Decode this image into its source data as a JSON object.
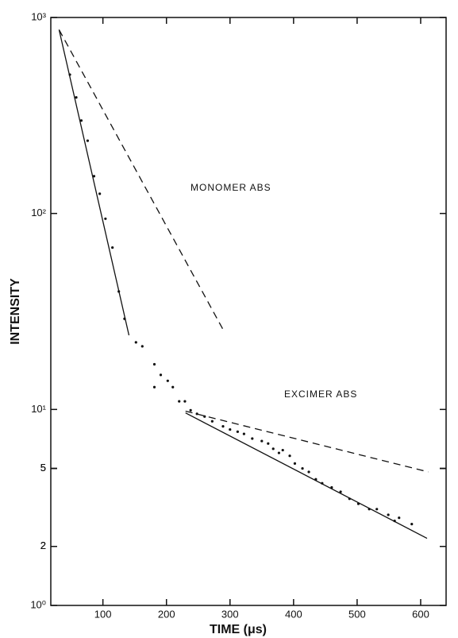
{
  "chart_data": {
    "type": "scatter",
    "x_label": "TIME (μs)",
    "y_label": "INTENSITY",
    "annotations": [
      "MONOMER ABS",
      "EXCIMER ABS"
    ],
    "log_y": true,
    "color": "#111111",
    "xlim": [
      18,
      640
    ],
    "xticks": [
      100,
      200,
      300,
      400,
      500,
      600
    ],
    "ylim": [
      1,
      1000
    ],
    "yticks": [
      {
        "value": 1,
        "label": "10⁰"
      },
      2,
      5,
      {
        "value": 10,
        "label": "10¹"
      },
      2,
      5,
      {
        "value": 100,
        "label": "10²"
      },
      2,
      5,
      {
        "value": 1000,
        "label": "10³"
      }
    ],
    "series": [
      {
        "mode": "markers",
        "x": [
          48,
          58,
          66,
          76,
          86,
          95,
          104,
          115,
          125,
          134,
          152,
          162,
          181,
          191,
          181,
          202,
          210,
          220,
          229,
          238,
          248,
          260,
          272,
          289,
          300,
          312,
          322,
          335,
          350,
          360,
          368,
          377,
          383,
          394,
          402,
          414,
          424,
          435,
          445,
          460,
          474,
          488,
          502,
          519,
          531,
          549,
          559,
          566,
          586
        ],
        "values": [
          511,
          391,
          298,
          235,
          155,
          126,
          94,
          67,
          40,
          29,
          22,
          21,
          17,
          15,
          13,
          14,
          13,
          11,
          11,
          9.9,
          9.5,
          9.2,
          8.7,
          8.2,
          7.9,
          7.7,
          7.5,
          7.1,
          6.9,
          6.7,
          6.3,
          6.0,
          6.2,
          5.8,
          5.3,
          5.0,
          4.8,
          4.4,
          4.2,
          4.0,
          3.8,
          3.5,
          3.3,
          3.1,
          3.1,
          2.9,
          2.7,
          2.8,
          2.6
        ]
      },
      {
        "mode": "line",
        "dash": false,
        "x": [
          31,
          141
        ],
        "values": [
          866,
          23.9
        ]
      },
      {
        "mode": "line",
        "dash": true,
        "x": [
          31,
          291
        ],
        "values": [
          866,
          24.9
        ]
      },
      {
        "mode": "line",
        "dash": false,
        "x": [
          230,
          610
        ],
        "values": [
          9.6,
          2.2
        ]
      },
      {
        "mode": "line",
        "dash": true,
        "x": [
          230,
          612
        ],
        "values": [
          9.8,
          4.8
        ]
      }
    ]
  }
}
